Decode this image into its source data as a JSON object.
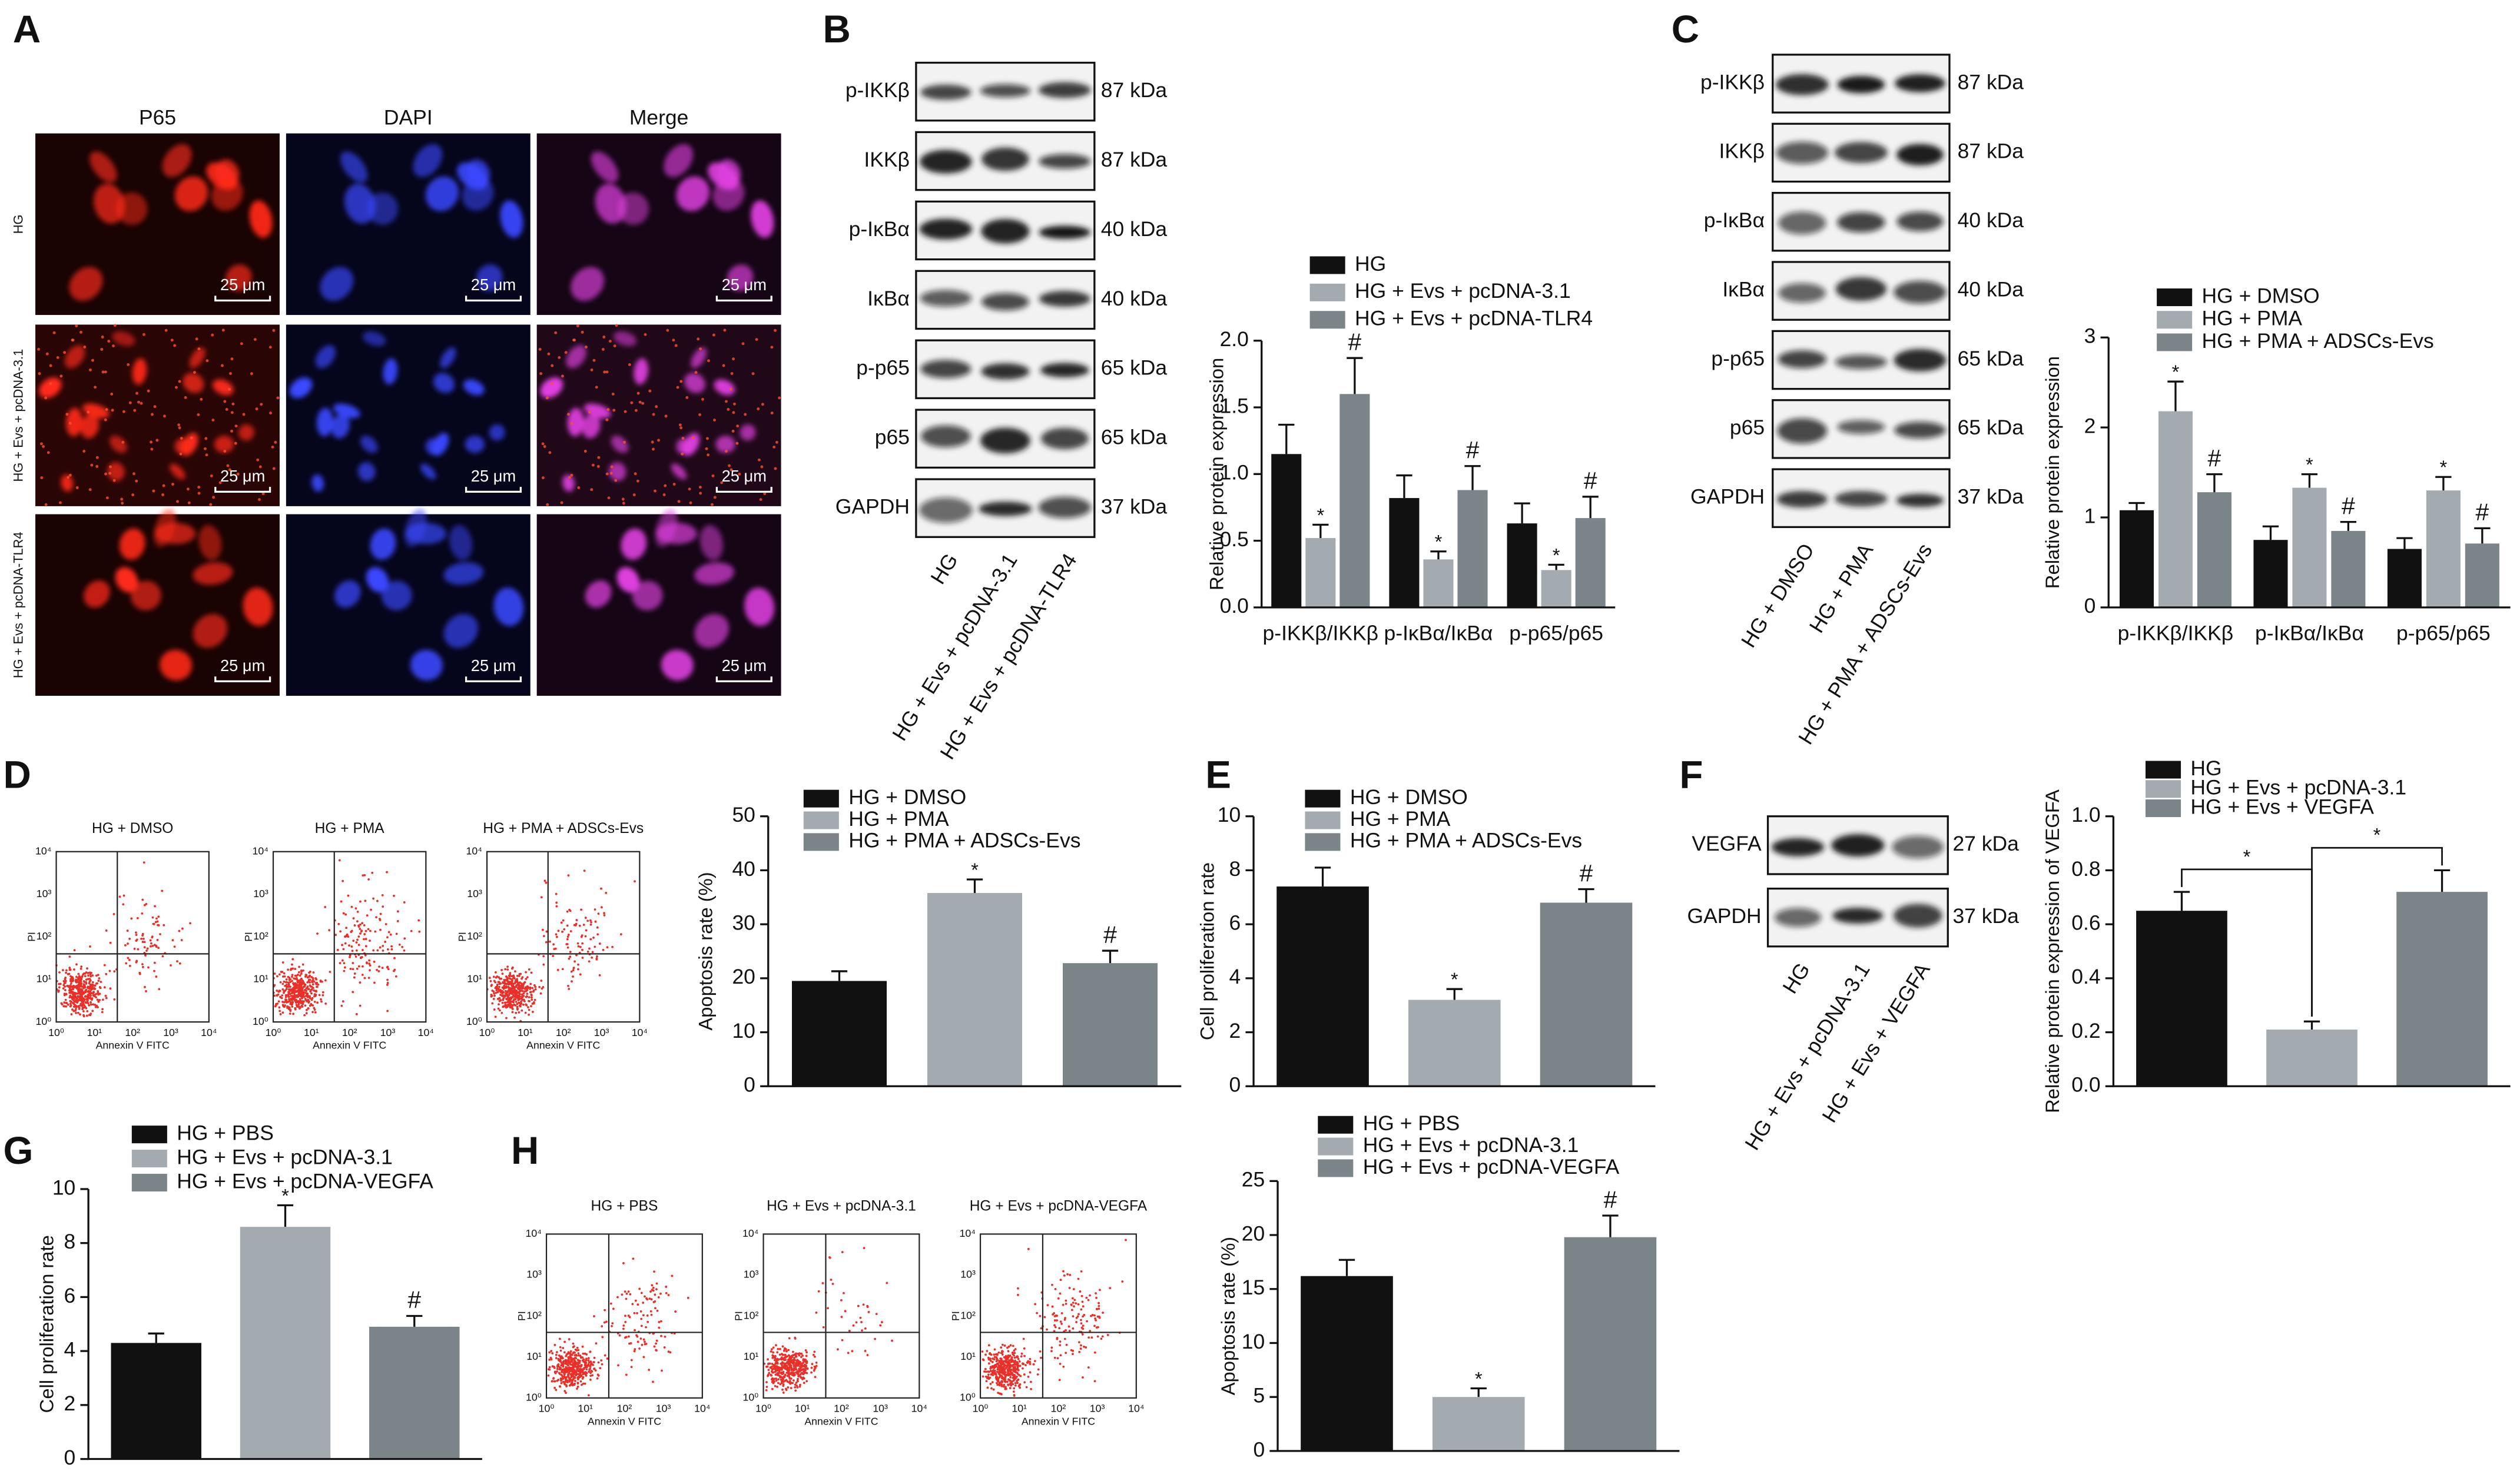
{
  "figure": {
    "panel_letters": [
      "A",
      "B",
      "C",
      "D",
      "E",
      "F",
      "G",
      "H"
    ],
    "microscopy": {
      "columns": [
        "P65",
        "DAPI",
        "Merge"
      ],
      "rows": [
        "HG",
        "HG + Evs + pcDNA-3.1",
        "HG + Evs + pcDNA-TLR4"
      ],
      "scale_bar": "25 μm"
    },
    "blots": [
      {
        "rows": [
          "p-IKKβ",
          "IKKβ",
          "p-IκBα",
          "IκBα",
          "p-p65",
          "p65",
          "GAPDH"
        ],
        "sizes": [
          "87 kDa",
          "87 kDa",
          "40 kDa",
          "40 kDa",
          "65 kDa",
          "65 kDa",
          "37 kDa"
        ],
        "lanes": [
          "HG",
          "HG + Evs + pcDNA-3.1",
          "HG + Evs + pcDNA-TLR4"
        ]
      },
      {
        "rows": [
          "p-IKKβ",
          "IKKβ",
          "p-IκBα",
          "IκBα",
          "p-p65",
          "p65",
          "GAPDH"
        ],
        "sizes": [
          "87 kDa",
          "87 kDa",
          "40 kDa",
          "40 kDa",
          "65 kDa",
          "65 kDa",
          "37 kDa"
        ],
        "lanes": [
          "HG + DMSO",
          "HG + PMA",
          "HG + PMA + ADSCs-Evs"
        ]
      },
      {
        "rows": [
          "VEGFA",
          "GAPDH"
        ],
        "sizes": [
          "27 kDa",
          "37 kDa"
        ],
        "lanes": [
          "HG",
          "HG + Evs + pcDNA-3.1",
          "HG + Evs + VEGFA"
        ]
      }
    ],
    "flow": {
      "x_label": "Annexin V FITC",
      "y_label": "PI",
      "ticks": [
        "10⁰",
        "10¹",
        "10²",
        "10³",
        "10⁴"
      ],
      "panels": [
        [
          "HG + DMSO",
          "HG + PMA",
          "HG + PMA + ADSCs-Evs"
        ],
        [
          "HG + PBS",
          "HG + Evs + pcDNA-3.1",
          "HG + Evs + pcDNA-VEGFA"
        ]
      ]
    }
  },
  "chart_data": [
    {
      "type": "bar",
      "y_label": "Relative protein expression",
      "categories": [
        "p-IKKβ/IKKβ",
        "p-IκBα/IκBα",
        "p-p65/p65"
      ],
      "series": [
        {
          "name": "HG",
          "color": "#111111",
          "values": [
            1.15,
            0.82,
            0.63
          ],
          "errors": [
            0.22,
            0.17,
            0.15
          ]
        },
        {
          "name": "HG + Evs + pcDNA-3.1",
          "color": "#a3abb1",
          "values": [
            0.52,
            0.36,
            0.28
          ],
          "errors": [
            0.1,
            0.06,
            0.04
          ],
          "annotations": [
            "*",
            "*",
            "*"
          ]
        },
        {
          "name": "HG + Evs + pcDNA-TLR4",
          "color": "#7b8488",
          "values": [
            1.6,
            0.88,
            0.67
          ],
          "errors": [
            0.27,
            0.18,
            0.16
          ],
          "annotations": [
            "#",
            "#",
            "#"
          ]
        }
      ],
      "ylim": [
        0,
        2
      ],
      "yticks": [
        {
          "value": 0,
          "label": "0.0"
        },
        0.5,
        {
          "value": 1,
          "label": "1.0"
        },
        1.5,
        {
          "value": 2,
          "label": "2.0"
        }
      ]
    },
    {
      "type": "bar",
      "y_label": "Relative protein expression",
      "categories": [
        "p-IKKβ/IKKβ",
        "p-IκBα/IκBα",
        "p-p65/p65"
      ],
      "series": [
        {
          "name": "HG + DMSO",
          "color": "#111111",
          "values": [
            1.08,
            0.75,
            0.65
          ],
          "errors": [
            0.08,
            0.15,
            0.12
          ]
        },
        {
          "name": "HG + PMA",
          "color": "#a3abb1",
          "values": [
            2.18,
            1.33,
            1.3
          ],
          "errors": [
            0.33,
            0.15,
            0.15
          ],
          "annotations": [
            "*",
            "*",
            "*"
          ]
        },
        {
          "name": "HG + PMA + ADSCs-Evs",
          "color": "#7b8488",
          "values": [
            1.28,
            0.85,
            0.71
          ],
          "errors": [
            0.2,
            0.1,
            0.17
          ],
          "annotations": [
            "#",
            "#",
            "#"
          ]
        }
      ],
      "ylim": [
        0,
        3
      ],
      "yticks": [
        0,
        1,
        2,
        3
      ]
    },
    {
      "type": "bar",
      "y_label": "Apoptosis rate (%)",
      "series": [
        {
          "name": "HG + DMSO",
          "color": "#111111",
          "values": [
            19.5
          ],
          "errors": [
            1.8
          ]
        },
        {
          "name": "HG + PMA",
          "color": "#a3abb1",
          "values": [
            35.8
          ],
          "errors": [
            2.5
          ],
          "annotations": [
            "*"
          ]
        },
        {
          "name": "HG + PMA + ADSCs-Evs",
          "color": "#7b8488",
          "values": [
            22.8
          ],
          "errors": [
            2.3
          ],
          "annotations": [
            "#"
          ]
        }
      ],
      "ylim": [
        0,
        50
      ],
      "yticks": [
        0,
        10,
        20,
        30,
        40,
        50
      ]
    },
    {
      "type": "bar",
      "y_label": "Cell proliferation rate",
      "series": [
        {
          "name": "HG + DMSO",
          "color": "#111111",
          "values": [
            7.4
          ],
          "errors": [
            0.7
          ]
        },
        {
          "name": "HG + PMA",
          "color": "#a3abb1",
          "values": [
            3.2
          ],
          "errors": [
            0.4
          ],
          "annotations": [
            "*"
          ]
        },
        {
          "name": "HG + PMA + ADSCs-Evs",
          "color": "#7b8488",
          "values": [
            6.8
          ],
          "errors": [
            0.5
          ],
          "annotations": [
            "#"
          ]
        }
      ],
      "ylim": [
        0,
        10
      ],
      "yticks": [
        0,
        2,
        4,
        6,
        8,
        10
      ]
    },
    {
      "type": "bar",
      "y_label": "Relative protein expression of VEGFA",
      "series": [
        {
          "name": "HG",
          "color": "#111111",
          "values": [
            0.65
          ],
          "errors": [
            0.07
          ]
        },
        {
          "name": "HG + Evs + pcDNA-3.1",
          "color": "#a3abb1",
          "values": [
            0.21
          ],
          "errors": [
            0.03
          ]
        },
        {
          "name": "HG + Evs + VEGFA",
          "color": "#7b8488",
          "values": [
            0.72
          ],
          "errors": [
            0.08
          ]
        }
      ],
      "brackets": [
        "*",
        "*"
      ],
      "ylim": [
        0,
        1
      ],
      "yticks": [
        {
          "value": 0,
          "label": "0.0"
        },
        0.2,
        0.4,
        0.6,
        0.8,
        {
          "value": 1,
          "label": "1.0"
        }
      ]
    },
    {
      "type": "bar",
      "y_label": "Cell proliferation rate",
      "series": [
        {
          "name": "HG + PBS",
          "color": "#111111",
          "values": [
            4.3
          ],
          "errors": [
            0.35
          ]
        },
        {
          "name": "HG + Evs + pcDNA-3.1",
          "color": "#a3abb1",
          "values": [
            8.6
          ],
          "errors": [
            0.8
          ],
          "annotations": [
            "*"
          ]
        },
        {
          "name": "HG + Evs + pcDNA-VEGFA",
          "color": "#7b8488",
          "values": [
            4.9
          ],
          "errors": [
            0.4
          ],
          "annotations": [
            "#"
          ]
        }
      ],
      "ylim": [
        0,
        10
      ],
      "yticks": [
        0,
        2,
        4,
        6,
        8,
        10
      ]
    },
    {
      "type": "bar",
      "y_label": "Apoptosis rate (%)",
      "series": [
        {
          "name": "HG + PBS",
          "color": "#111111",
          "values": [
            16.2
          ],
          "errors": [
            1.5
          ]
        },
        {
          "name": "HG + Evs + pcDNA-3.1",
          "color": "#a3abb1",
          "values": [
            5.0
          ],
          "errors": [
            0.8
          ],
          "annotations": [
            "*"
          ]
        },
        {
          "name": "HG + Evs + pcDNA-VEGFA",
          "color": "#7b8488",
          "values": [
            19.8
          ],
          "errors": [
            2.0
          ],
          "annotations": [
            "#"
          ]
        }
      ],
      "ylim": [
        0,
        25
      ],
      "yticks": [
        0,
        5,
        10,
        15,
        20,
        25
      ]
    }
  ]
}
